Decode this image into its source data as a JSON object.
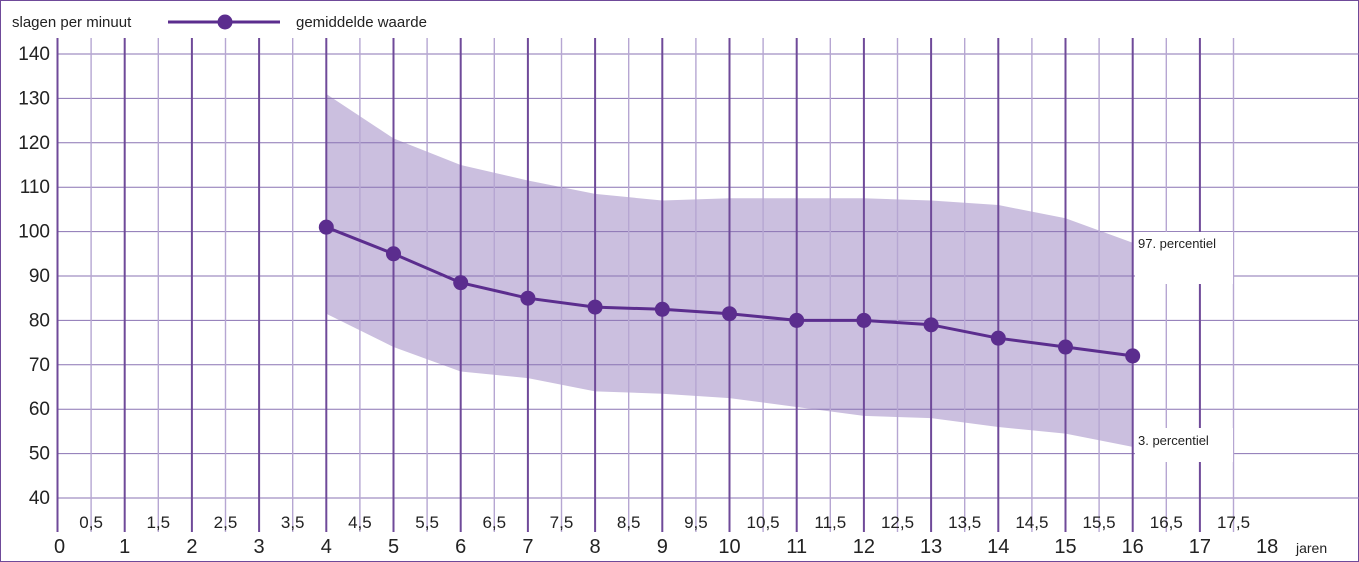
{
  "chart_data": {
    "type": "line",
    "ylabel": "slagen per minuut",
    "xlabel_unit": "jaren",
    "legend_label": "gemiddelde waarde",
    "ylim": [
      40,
      140
    ],
    "xlim": [
      0,
      18
    ],
    "y_ticks": [
      "40",
      "50",
      "60",
      "70",
      "80",
      "90",
      "100",
      "110",
      "120",
      "130",
      "140"
    ],
    "x_ticks_major": [
      "0",
      "1",
      "2",
      "3",
      "4",
      "5",
      "6",
      "7",
      "8",
      "9",
      "10",
      "11",
      "12",
      "13",
      "14",
      "15",
      "16",
      "17",
      "18"
    ],
    "x_ticks_minor": [
      "0,5",
      "1,5",
      "2,5",
      "3,5",
      "4,5",
      "5,5",
      "6,5",
      "7,5",
      "8,5",
      "9,5",
      "10,5",
      "11,5",
      "12,5",
      "13,5",
      "14,5",
      "15,5",
      "16,5",
      "17,5"
    ],
    "series": [
      {
        "name": "gemiddelde waarde",
        "x": [
          4,
          5,
          6,
          7,
          8,
          9,
          10,
          11,
          12,
          13,
          14,
          15,
          16
        ],
        "values": [
          101,
          95,
          88.5,
          85,
          83,
          82.5,
          81.5,
          80,
          80,
          79,
          76,
          74,
          72
        ]
      }
    ],
    "band": {
      "x": [
        4,
        5,
        6,
        7,
        8,
        9,
        10,
        11,
        12,
        13,
        14,
        15,
        16
      ],
      "upper": [
        131,
        121,
        115,
        111.5,
        108.5,
        107,
        107.5,
        107.5,
        107.5,
        107,
        106,
        103,
        97.5
      ],
      "lower": [
        81.5,
        74,
        68.5,
        67,
        64,
        63.5,
        62.5,
        60.5,
        58.5,
        58,
        56,
        54.5,
        51.5
      ],
      "upper_label": "97. percentiel",
      "lower_label": "3. percentiel"
    },
    "grid": true,
    "legend_position": "top-left",
    "colors": {
      "line": "#5b2d8e",
      "band": "#cbbfdf",
      "major_grid": "#6f4a99",
      "minor_grid": "#b6a6d2",
      "hgrid": "#8a73b3"
    }
  }
}
